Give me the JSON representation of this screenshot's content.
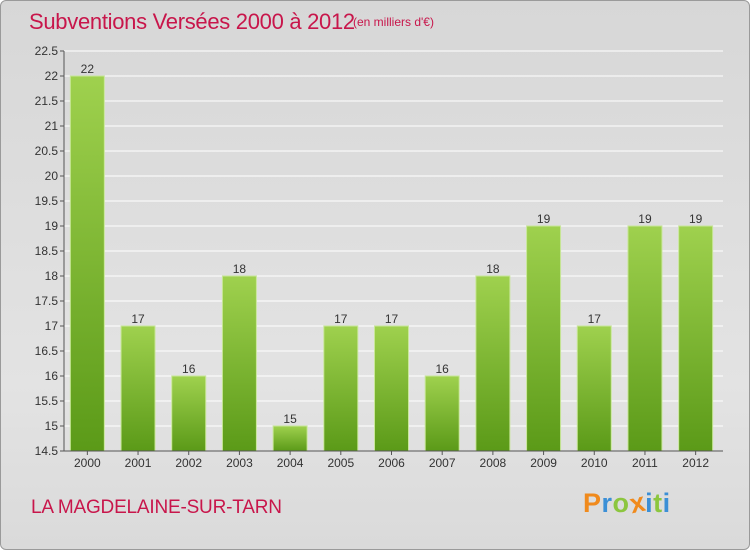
{
  "header": {
    "title": "Subventions Versées 2000 à 2012",
    "unit": "(en milliers d'€)"
  },
  "footer": {
    "commune": "LA MAGDELAINE-SUR-TARN",
    "logo": "Proxiti",
    "logo_colors": [
      "#f08a1c",
      "#3b8fd6",
      "#8cc63f",
      "#f08a1c",
      "#3b8fd6",
      "#8cc63f",
      "#3b8fd6"
    ]
  },
  "colors": {
    "title": "#c8164b",
    "bar_top": "#9fd14e",
    "bar_bottom": "#5b9a18",
    "grid": "#ffffff",
    "axis": "#555555"
  },
  "chart_data": {
    "type": "bar",
    "categories": [
      "2000",
      "2001",
      "2002",
      "2003",
      "2004",
      "2005",
      "2006",
      "2007",
      "2008",
      "2009",
      "2010",
      "2011",
      "2012"
    ],
    "values": [
      22,
      17,
      16,
      18,
      15,
      17,
      17,
      16,
      18,
      19,
      17,
      19,
      19
    ],
    "data_labels": [
      "22",
      "17",
      "16",
      "18",
      "15",
      "17",
      "17",
      "16",
      "18",
      "19",
      "17",
      "19",
      "19"
    ],
    "ylim": [
      14.5,
      22.5
    ],
    "yticks": [
      14.5,
      15,
      15.5,
      16,
      16.5,
      17,
      17.5,
      18,
      18.5,
      19,
      19.5,
      20,
      20.5,
      21,
      21.5,
      22,
      22.5
    ],
    "ytick_labels": [
      "14.5",
      "15",
      "15.5",
      "16",
      "16.5",
      "17",
      "17.5",
      "18",
      "18.5",
      "19",
      "19.5",
      "20",
      "20.5",
      "21",
      "21.5",
      "22",
      "22.5"
    ],
    "grid": true,
    "legend": "none"
  }
}
